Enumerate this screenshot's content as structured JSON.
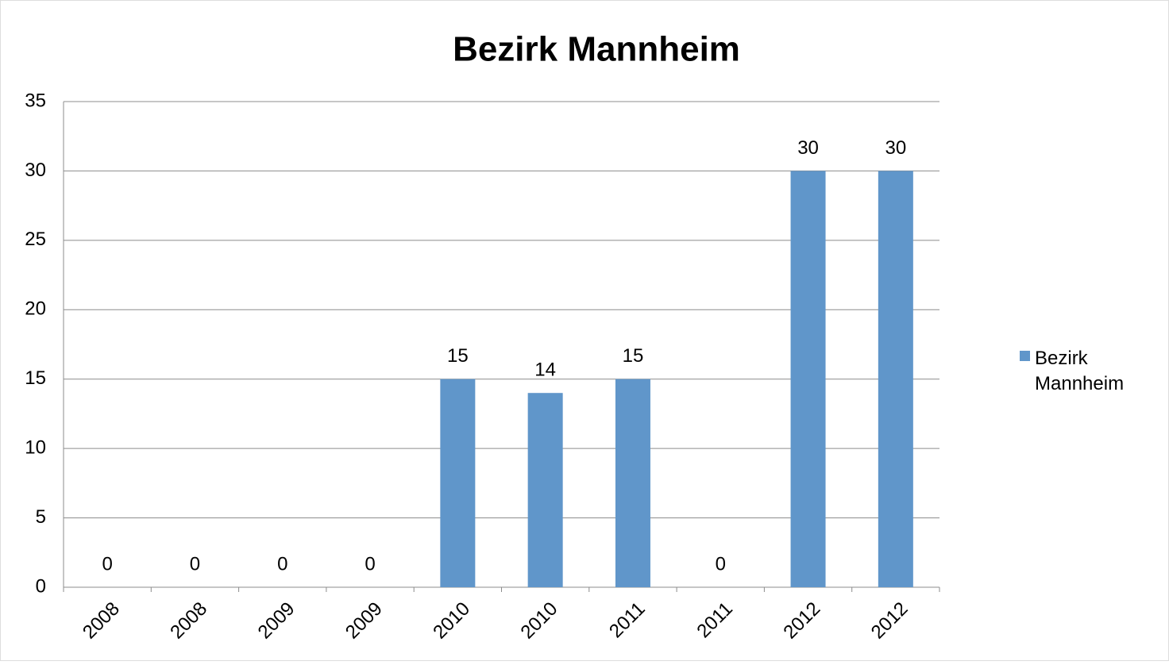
{
  "chart_data": {
    "type": "bar",
    "title": "Bezirk Mannheim",
    "categories": [
      "2008",
      "2008",
      "2009",
      "2009",
      "2010",
      "2010",
      "2011",
      "2011",
      "2012",
      "2012"
    ],
    "series": [
      {
        "name": "Bezirk Mannheim",
        "color": "#6096ca",
        "values": [
          0,
          0,
          0,
          0,
          15,
          14,
          15,
          0,
          30,
          30
        ]
      }
    ],
    "ylim": [
      0,
      35
    ],
    "yticks": [
      0,
      5,
      10,
      15,
      20,
      25,
      30,
      35
    ],
    "grid": true,
    "legend": "right"
  }
}
